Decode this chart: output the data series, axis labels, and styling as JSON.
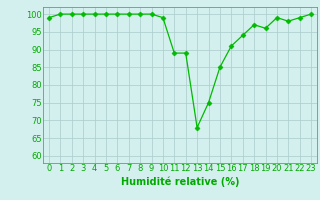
{
  "x": [
    0,
    1,
    2,
    3,
    4,
    5,
    6,
    7,
    8,
    9,
    10,
    11,
    12,
    13,
    14,
    15,
    16,
    17,
    18,
    19,
    20,
    21,
    22,
    23
  ],
  "y": [
    99,
    100,
    100,
    100,
    100,
    100,
    100,
    100,
    100,
    100,
    99,
    89,
    89,
    68,
    75,
    85,
    91,
    94,
    97,
    96,
    99,
    98,
    99,
    100
  ],
  "line_color": "#00bb00",
  "marker": "D",
  "marker_size": 2.5,
  "bg_color": "#d4f0ee",
  "grid_color": "#aacccc",
  "xlabel": "Humidité relative (%)",
  "xlabel_color": "#00aa00",
  "xlabel_fontsize": 7,
  "tick_color": "#00aa00",
  "tick_fontsize": 6,
  "ylim": [
    58,
    102
  ],
  "xlim": [
    -0.5,
    23.5
  ],
  "yticks": [
    60,
    65,
    70,
    75,
    80,
    85,
    90,
    95,
    100
  ],
  "xticks": [
    0,
    1,
    2,
    3,
    4,
    5,
    6,
    7,
    8,
    9,
    10,
    11,
    12,
    13,
    14,
    15,
    16,
    17,
    18,
    19,
    20,
    21,
    22,
    23
  ]
}
